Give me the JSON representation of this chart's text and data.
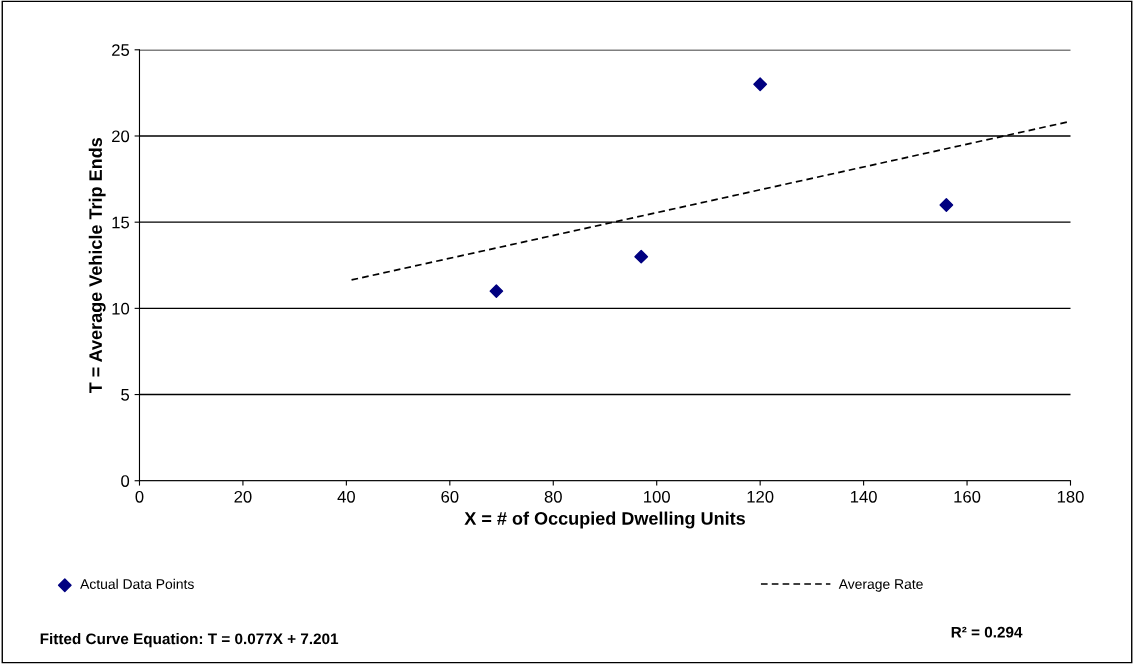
{
  "chart_data": {
    "type": "scatter",
    "xlabel": "X = # of Occupied Dwelling Units",
    "ylabel": "T = Average Vehicle Trip Ends",
    "series": [
      {
        "name": "Actual Data Points",
        "color": "#000080",
        "marker": "diamond",
        "x": [
          69,
          97,
          120,
          156
        ],
        "values": [
          11,
          13,
          23,
          16
        ]
      },
      {
        "name": "Average Rate",
        "type": "line",
        "color": "#000000",
        "line_style": "dashed",
        "x": [
          41,
          180
        ],
        "values": [
          11.65,
          20.85
        ]
      }
    ],
    "xlim": [
      0,
      180
    ],
    "xticks": [
      0,
      20,
      40,
      60,
      80,
      100,
      120,
      140,
      160,
      180
    ],
    "ylim": [
      0,
      25
    ],
    "yticks": [
      0,
      5,
      10,
      15,
      20,
      25
    ],
    "grid": "y",
    "legend": "bottom",
    "annotations": [
      "Fitted Curve Equation: T = 0.077X + 7.201",
      "R² = 0.294"
    ]
  }
}
